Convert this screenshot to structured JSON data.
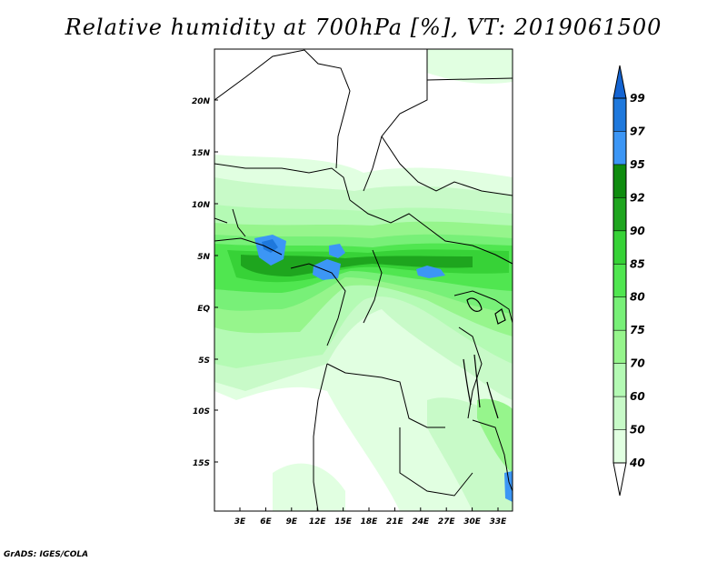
{
  "title": "Relative humidity at 700hPa [%], VT: 2019061500",
  "credit": "GrADS: IGES/COLA",
  "map": {
    "lat_labels": [
      "20N",
      "15N",
      "10N",
      "5N",
      "EQ",
      "5S",
      "10S",
      "15S"
    ],
    "lon_labels": [
      "3E",
      "6E",
      "9E",
      "12E",
      "15E",
      "18E",
      "21E",
      "24E",
      "27E",
      "30E",
      "33E"
    ]
  },
  "colorbar": {
    "levels": [
      "99",
      "97",
      "95",
      "92",
      "90",
      "85",
      "80",
      "75",
      "70",
      "60",
      "50",
      "40"
    ],
    "colors": [
      "#1464d2",
      "#1e78dc",
      "#3c96f5",
      "#0f8c0f",
      "#1ea51e",
      "#37d237",
      "#50e650",
      "#78f078",
      "#96f58c",
      "#b4fab4",
      "#c8fac8",
      "#e1ffe1",
      "#ffffff"
    ]
  }
}
